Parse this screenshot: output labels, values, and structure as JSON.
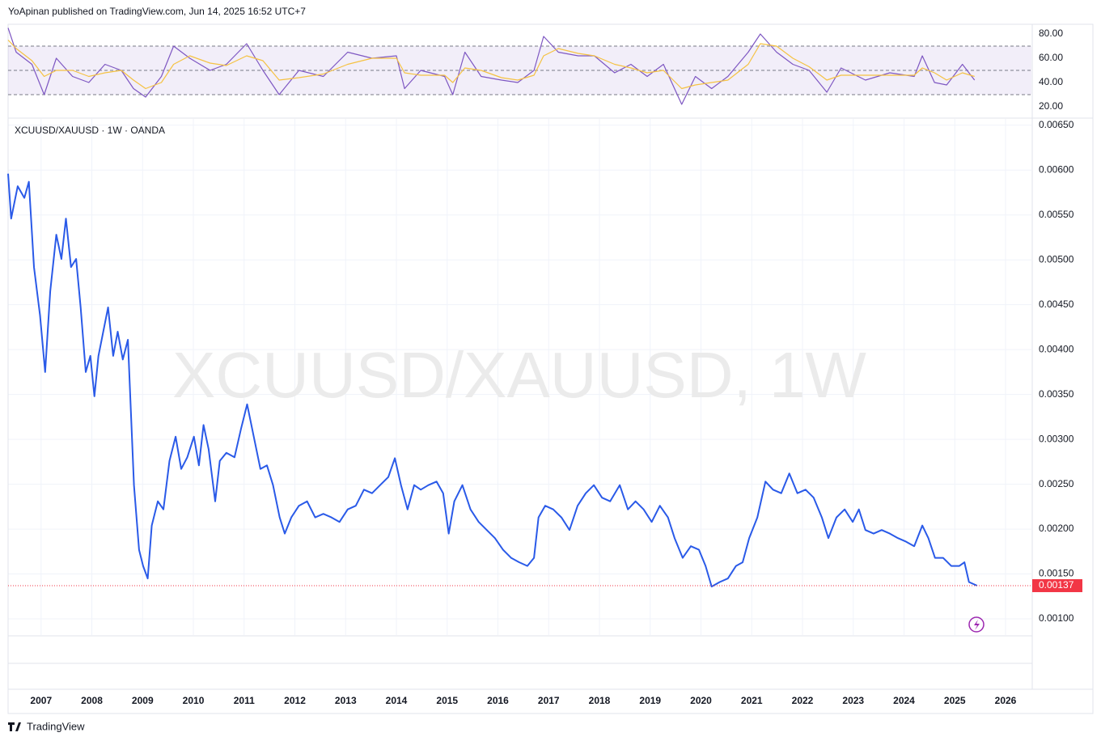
{
  "header": "YoApinan published on TradingView.com, Jun 14, 2025 16:52 UTC+7",
  "footer": "TradingView",
  "chart_data": [
    {
      "type": "line",
      "x": [
        2006.35,
        2006.51,
        2006.82,
        2007.06,
        2007.3,
        2007.62,
        2007.94,
        2008.26,
        2008.58,
        2008.82,
        2009.06,
        2009.37,
        2009.61,
        2009.93,
        2010.33,
        2010.65,
        2011.05,
        2011.37,
        2011.69,
        2012.08,
        2012.56,
        2013.04,
        2013.52,
        2014.0,
        2014.16,
        2014.48,
        2014.95,
        2015.11,
        2015.35,
        2015.67,
        2016.07,
        2016.39,
        2016.71,
        2016.9,
        2017.19,
        2017.58,
        2017.9,
        2018.3,
        2018.62,
        2018.94,
        2019.26,
        2019.62,
        2019.89,
        2020.21,
        2020.53,
        2020.93,
        2021.17,
        2021.49,
        2021.81,
        2022.13,
        2022.48,
        2022.76,
        2023.24,
        2023.72,
        2024.2,
        2024.36,
        2024.6,
        2024.84,
        2025.15,
        2025.39
      ],
      "series": [
        {
          "color": "#7e57c2",
          "values": [
            85,
            65,
            55,
            30,
            60,
            45,
            40,
            55,
            50,
            35,
            28,
            45,
            70,
            60,
            50,
            55,
            72,
            50,
            30,
            50,
            45,
            65,
            60,
            62,
            35,
            50,
            45,
            30,
            65,
            45,
            42,
            40,
            50,
            78,
            65,
            62,
            62,
            48,
            55,
            45,
            55,
            22,
            45,
            35,
            45,
            65,
            80,
            65,
            55,
            50,
            32,
            52,
            42,
            48,
            45,
            62,
            40,
            38,
            55,
            42
          ]
        },
        {
          "color": "#f5c242",
          "values": [
            75,
            68,
            58,
            45,
            50,
            50,
            45,
            48,
            50,
            42,
            35,
            40,
            55,
            62,
            56,
            54,
            62,
            58,
            42,
            44,
            47,
            55,
            60,
            60,
            48,
            46,
            46,
            40,
            52,
            50,
            44,
            42,
            46,
            62,
            68,
            64,
            62,
            55,
            52,
            48,
            50,
            35,
            38,
            40,
            42,
            55,
            72,
            70,
            60,
            53,
            42,
            46,
            46,
            46,
            46,
            52,
            48,
            42,
            48,
            45
          ]
        }
      ],
      "levels": [
        70,
        50,
        30
      ],
      "xlim": [
        2006.35,
        2026.51
      ],
      "ylim": [
        11.3,
        88
      ],
      "yticks": [
        {
          "value": 80,
          "label": "80.00"
        },
        {
          "value": 60,
          "label": "60.00"
        },
        {
          "value": 40,
          "label": "40.00"
        },
        {
          "value": 20,
          "label": "20.00"
        }
      ]
    },
    {
      "type": "line",
      "title": "XCUUSD/XAUUSD · 1W · OANDA",
      "watermark": "XCUUSD/XAUUSD, 1W",
      "color": "#2a5ae8",
      "x": [
        2006.35,
        2006.41,
        2006.54,
        2006.67,
        2006.76,
        2006.86,
        2006.98,
        2007.08,
        2007.18,
        2007.3,
        2007.4,
        2007.49,
        2007.59,
        2007.69,
        2007.78,
        2007.88,
        2007.97,
        2008.05,
        2008.13,
        2008.32,
        2008.42,
        2008.51,
        2008.61,
        2008.71,
        2008.83,
        2008.93,
        2009.01,
        2009.1,
        2009.18,
        2009.3,
        2009.41,
        2009.53,
        2009.65,
        2009.76,
        2009.88,
        2010.01,
        2010.11,
        2010.2,
        2010.3,
        2010.43,
        2010.52,
        2010.65,
        2010.81,
        2010.94,
        2011.06,
        2011.19,
        2011.32,
        2011.45,
        2011.57,
        2011.7,
        2011.8,
        2011.93,
        2012.08,
        2012.24,
        2012.4,
        2012.56,
        2012.72,
        2012.88,
        2013.04,
        2013.2,
        2013.36,
        2013.52,
        2013.68,
        2013.84,
        2013.97,
        2014.09,
        2014.22,
        2014.35,
        2014.48,
        2014.63,
        2014.79,
        2014.92,
        2015.03,
        2015.14,
        2015.3,
        2015.46,
        2015.62,
        2015.78,
        2015.94,
        2016.1,
        2016.26,
        2016.42,
        2016.58,
        2016.71,
        2016.8,
        2016.93,
        2017.09,
        2017.25,
        2017.41,
        2017.57,
        2017.73,
        2017.89,
        2018.05,
        2018.21,
        2018.4,
        2018.56,
        2018.71,
        2018.87,
        2019.03,
        2019.19,
        2019.35,
        2019.48,
        2019.64,
        2019.8,
        2019.96,
        2020.09,
        2020.21,
        2020.37,
        2020.53,
        2020.69,
        2020.82,
        2020.95,
        2021.11,
        2021.27,
        2021.42,
        2021.58,
        2021.74,
        2021.9,
        2022.06,
        2022.22,
        2022.38,
        2022.51,
        2022.67,
        2022.83,
        2022.99,
        2023.11,
        2023.24,
        2023.4,
        2023.56,
        2023.72,
        2023.88,
        2024.04,
        2024.2,
        2024.36,
        2024.48,
        2024.61,
        2024.77,
        2024.93,
        2025.09,
        2025.19,
        2025.28,
        2025.44
      ],
      "values": [
        0.00596,
        0.00546,
        0.00582,
        0.00569,
        0.00587,
        0.00492,
        0.00438,
        0.00375,
        0.00465,
        0.00528,
        0.00501,
        0.00546,
        0.00492,
        0.00501,
        0.00447,
        0.00375,
        0.00393,
        0.00348,
        0.00393,
        0.00447,
        0.00393,
        0.0042,
        0.00389,
        0.00411,
        0.00249,
        0.00177,
        0.00159,
        0.00145,
        0.00204,
        0.00231,
        0.00222,
        0.00276,
        0.00303,
        0.00267,
        0.0028,
        0.00303,
        0.00271,
        0.00316,
        0.00289,
        0.00231,
        0.00276,
        0.00285,
        0.0028,
        0.00312,
        0.00339,
        0.00303,
        0.00267,
        0.00271,
        0.00249,
        0.00213,
        0.00195,
        0.00213,
        0.00226,
        0.00231,
        0.00213,
        0.00217,
        0.00213,
        0.00208,
        0.00222,
        0.00226,
        0.00244,
        0.0024,
        0.00249,
        0.00258,
        0.00279,
        0.00249,
        0.00222,
        0.00249,
        0.00244,
        0.00249,
        0.00253,
        0.0024,
        0.00195,
        0.00231,
        0.00249,
        0.00222,
        0.00208,
        0.00199,
        0.0019,
        0.00177,
        0.00168,
        0.00163,
        0.00159,
        0.00168,
        0.00213,
        0.00226,
        0.00222,
        0.00213,
        0.00199,
        0.00226,
        0.0024,
        0.00249,
        0.00235,
        0.00231,
        0.00249,
        0.00222,
        0.00231,
        0.00222,
        0.00208,
        0.00226,
        0.00213,
        0.0019,
        0.00168,
        0.00181,
        0.00177,
        0.00159,
        0.00136,
        0.00141,
        0.00145,
        0.00159,
        0.00163,
        0.0019,
        0.00213,
        0.00253,
        0.00244,
        0.0024,
        0.00262,
        0.0024,
        0.00244,
        0.00235,
        0.00213,
        0.0019,
        0.00213,
        0.00222,
        0.00208,
        0.00222,
        0.00199,
        0.00195,
        0.00199,
        0.00195,
        0.0019,
        0.00186,
        0.00181,
        0.00204,
        0.0019,
        0.00168,
        0.00168,
        0.00159,
        0.00159,
        0.00163,
        0.00141,
        0.00137
      ],
      "last_value_label": "0.00137",
      "last_color": "#f23645",
      "xlim": [
        2006.35,
        2026.51
      ],
      "xticks": [
        2007,
        2008,
        2009,
        2010,
        2011,
        2012,
        2013,
        2014,
        2015,
        2016,
        2017,
        2018,
        2019,
        2020,
        2021,
        2022,
        2023,
        2024,
        2025,
        2026
      ],
      "ylim": [
        0.00082,
        0.00657
      ],
      "yticks": [
        {
          "value": 0.001,
          "label": "0.00100"
        },
        {
          "value": 0.0015,
          "label": "0.00150"
        },
        {
          "value": 0.002,
          "label": "0.00200"
        },
        {
          "value": 0.0025,
          "label": "0.00250"
        },
        {
          "value": 0.003,
          "label": "0.00300"
        },
        {
          "value": 0.0035,
          "label": "0.00350"
        },
        {
          "value": 0.004,
          "label": "0.00400"
        },
        {
          "value": 0.0045,
          "label": "0.00450"
        },
        {
          "value": 0.005,
          "label": "0.00500"
        },
        {
          "value": 0.0055,
          "label": "0.00550"
        },
        {
          "value": 0.006,
          "label": "0.00600"
        },
        {
          "value": 0.0065,
          "label": "0.00650"
        }
      ],
      "grid": true
    }
  ]
}
